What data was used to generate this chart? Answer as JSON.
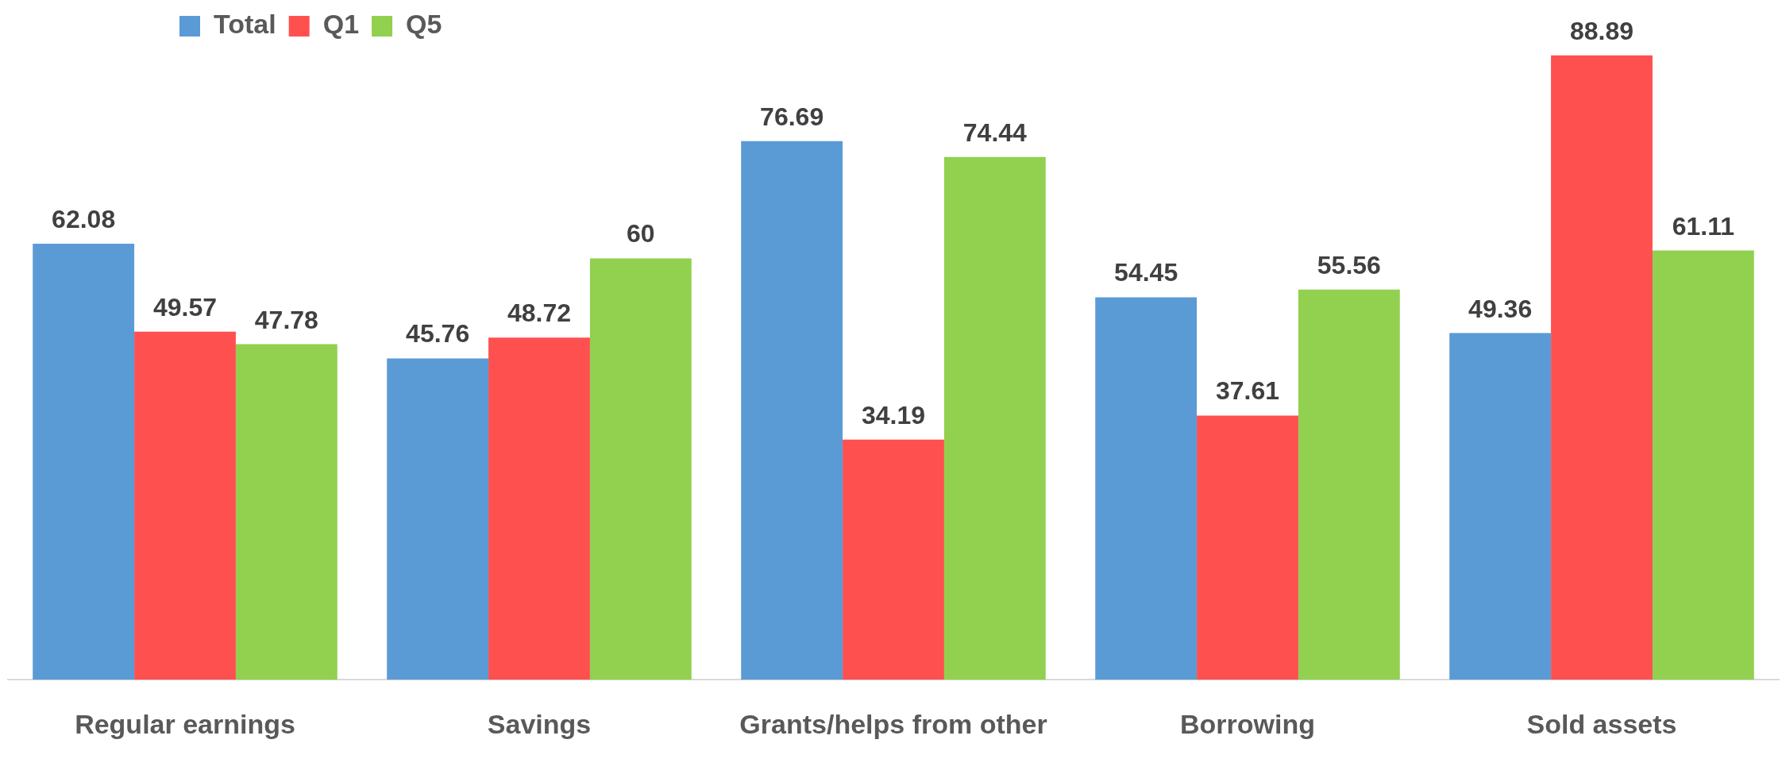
{
  "chart_data": {
    "type": "bar",
    "categories": [
      "Regular earnings",
      "Savings",
      "Grants/helps from other",
      "Borrowing",
      "Sold assets"
    ],
    "series": [
      {
        "name": "Total",
        "color": "#5b9bd5",
        "values": [
          62.08,
          45.76,
          76.69,
          54.45,
          49.36
        ]
      },
      {
        "name": "Q1",
        "color": "#ff5050",
        "values": [
          49.57,
          48.72,
          34.19,
          37.61,
          88.89
        ]
      },
      {
        "name": "Q5",
        "color": "#92d050",
        "values": [
          47.78,
          60,
          74.44,
          55.56,
          61.11
        ]
      }
    ],
    "data_labels": true,
    "legend": "top left",
    "tick_labels": "x"
  }
}
